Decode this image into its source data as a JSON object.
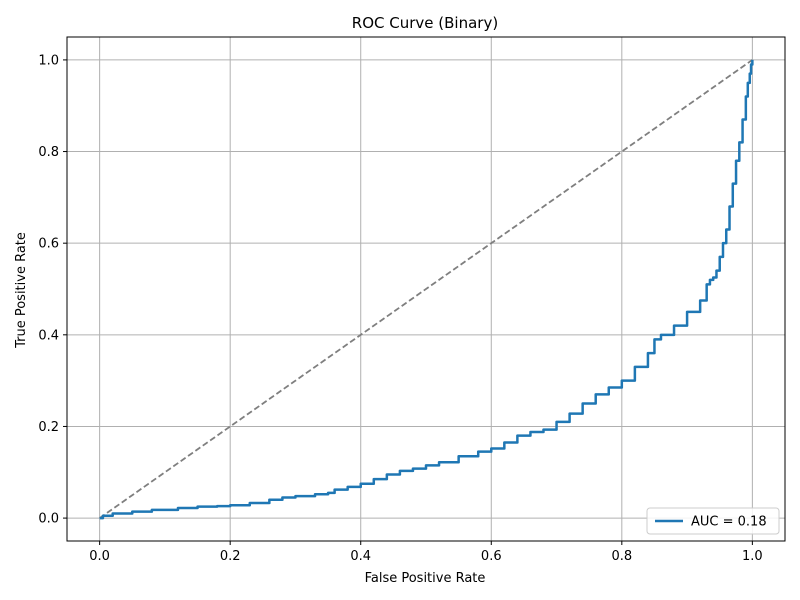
{
  "chart_data": {
    "type": "line",
    "title": "ROC Curve (Binary)",
    "xlabel": "False Positive Rate",
    "ylabel": "True Positive Rate",
    "xlim": [
      -0.05,
      1.05
    ],
    "ylim": [
      -0.05,
      1.05
    ],
    "xticks": [
      "0.0",
      "0.2",
      "0.4",
      "0.6",
      "0.8",
      "1.0"
    ],
    "yticks": [
      "0.0",
      "0.2",
      "0.4",
      "0.6",
      "0.8",
      "1.0"
    ],
    "grid": true,
    "legend_position": "lower-right",
    "series": [
      {
        "name": "AUC = 0.18",
        "color": "#1f77b4",
        "style": "solid",
        "x": [
          0.0,
          0.005,
          0.02,
          0.05,
          0.08,
          0.12,
          0.15,
          0.18,
          0.2,
          0.23,
          0.26,
          0.28,
          0.3,
          0.33,
          0.35,
          0.36,
          0.38,
          0.4,
          0.42,
          0.44,
          0.46,
          0.48,
          0.5,
          0.52,
          0.55,
          0.58,
          0.6,
          0.62,
          0.64,
          0.66,
          0.68,
          0.7,
          0.72,
          0.74,
          0.76,
          0.78,
          0.8,
          0.82,
          0.84,
          0.85,
          0.86,
          0.88,
          0.9,
          0.92,
          0.93,
          0.935,
          0.94,
          0.945,
          0.95,
          0.955,
          0.96,
          0.965,
          0.97,
          0.975,
          0.98,
          0.985,
          0.99,
          0.993,
          0.996,
          0.998,
          1.0
        ],
        "y": [
          0.0,
          0.005,
          0.01,
          0.014,
          0.018,
          0.022,
          0.025,
          0.026,
          0.028,
          0.033,
          0.04,
          0.045,
          0.048,
          0.052,
          0.055,
          0.062,
          0.068,
          0.075,
          0.085,
          0.095,
          0.103,
          0.108,
          0.115,
          0.122,
          0.135,
          0.145,
          0.152,
          0.165,
          0.18,
          0.188,
          0.193,
          0.21,
          0.228,
          0.25,
          0.27,
          0.285,
          0.3,
          0.33,
          0.36,
          0.39,
          0.4,
          0.42,
          0.45,
          0.475,
          0.51,
          0.52,
          0.525,
          0.54,
          0.57,
          0.6,
          0.63,
          0.68,
          0.73,
          0.78,
          0.82,
          0.87,
          0.92,
          0.95,
          0.97,
          0.99,
          1.0
        ]
      },
      {
        "name": "",
        "color": "#7f7f7f",
        "style": "dashed",
        "x": [
          0.0,
          1.0
        ],
        "y": [
          0.0,
          1.0
        ]
      }
    ]
  }
}
